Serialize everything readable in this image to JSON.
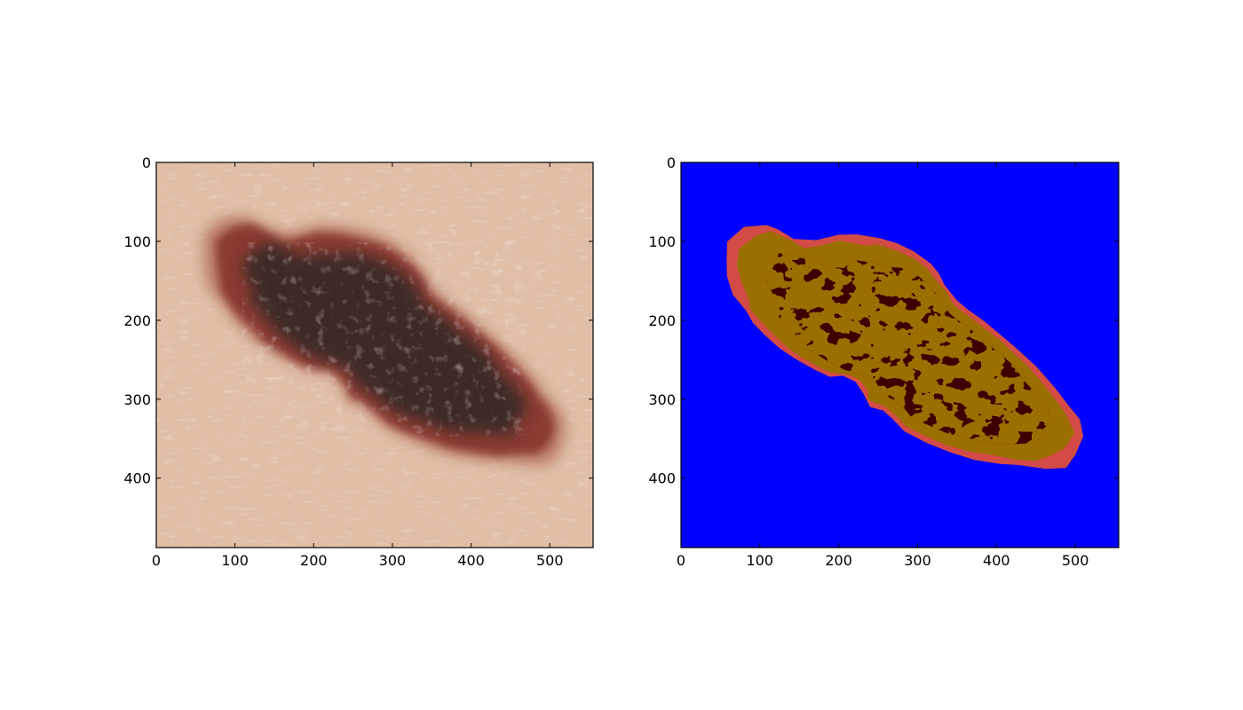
{
  "chart_data": [
    {
      "type": "heatmap",
      "name": "original-dermoscopy-image",
      "title": "",
      "xlabel": "",
      "ylabel": "",
      "xlim": [
        0,
        555
      ],
      "ylim": [
        488,
        0
      ],
      "xticks": [
        0,
        100,
        200,
        300,
        400,
        500
      ],
      "yticks": [
        0,
        100,
        200,
        300,
        400
      ],
      "grid": false,
      "colors": {
        "skin": "#dcb9a0",
        "lesion_rim": "#8a3a30",
        "lesion_core": "#3c2b27",
        "highlight": "#8a7a72"
      }
    },
    {
      "type": "heatmap",
      "name": "segmentation-map",
      "title": "",
      "xlabel": "",
      "ylabel": "",
      "xlim": [
        0,
        555
      ],
      "ylim": [
        488,
        0
      ],
      "xticks": [
        0,
        100,
        200,
        300,
        400,
        500
      ],
      "yticks": [
        0,
        100,
        200,
        300,
        400
      ],
      "grid": false,
      "classes": [
        {
          "color": "#0000ff"
        },
        {
          "color": "#d24b46"
        },
        {
          "color": "#9b6e00"
        },
        {
          "color": "#3c0000"
        }
      ]
    }
  ]
}
